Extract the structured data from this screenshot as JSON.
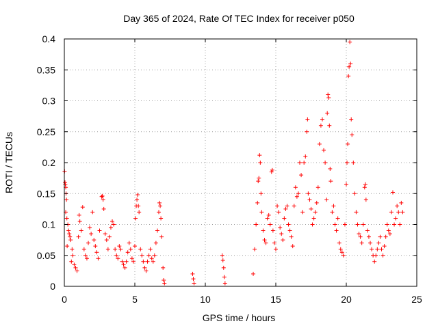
{
  "chart_data": {
    "type": "scatter",
    "title": "Day 365 of 2024, Rate Of TEC Index for receiver p050",
    "xlabel": "GPS time / hours",
    "ylabel": "ROTI / TECUs",
    "xlim": [
      0,
      25
    ],
    "ylim": [
      0,
      0.4
    ],
    "xticks": [
      0,
      5,
      10,
      15,
      20,
      25
    ],
    "yticks": [
      0,
      0.05,
      0.1,
      0.15,
      0.2,
      0.25,
      0.3,
      0.35,
      0.4
    ],
    "ytick_labels": [
      "0",
      "0.05",
      "0.1",
      "0.15",
      "0.2",
      "0.25",
      "0.3",
      "0.35",
      "0.4"
    ],
    "grid": true,
    "marker": "+",
    "color": "#ff0000",
    "series": [
      {
        "name": "ROTI",
        "points": [
          [
            0.02,
            0.186
          ],
          [
            0.05,
            0.168
          ],
          [
            0.07,
            0.165
          ],
          [
            0.1,
            0.16
          ],
          [
            0.12,
            0.15
          ],
          [
            0.15,
            0.14
          ],
          [
            0.1,
            0.12
          ],
          [
            0.18,
            0.11
          ],
          [
            0.25,
            0.1
          ],
          [
            0.3,
            0.09
          ],
          [
            0.35,
            0.085
          ],
          [
            0.4,
            0.08
          ],
          [
            0.45,
            0.075
          ],
          [
            0.55,
            0.06
          ],
          [
            0.6,
            0.05
          ],
          [
            0.2,
            0.065
          ],
          [
            0.5,
            0.04
          ],
          [
            0.7,
            0.035
          ],
          [
            0.8,
            0.03
          ],
          [
            0.9,
            0.025
          ],
          [
            1.0,
            0.08
          ],
          [
            1.05,
            0.115
          ],
          [
            1.1,
            0.105
          ],
          [
            1.2,
            0.09
          ],
          [
            1.3,
            0.128
          ],
          [
            1.4,
            0.06
          ],
          [
            1.5,
            0.05
          ],
          [
            1.6,
            0.045
          ],
          [
            1.7,
            0.07
          ],
          [
            1.8,
            0.095
          ],
          [
            1.9,
            0.085
          ],
          [
            2.0,
            0.12
          ],
          [
            2.1,
            0.075
          ],
          [
            2.2,
            0.065
          ],
          [
            2.3,
            0.055
          ],
          [
            2.4,
            0.045
          ],
          [
            2.5,
            0.09
          ],
          [
            2.65,
            0.145
          ],
          [
            2.7,
            0.146
          ],
          [
            2.75,
            0.14
          ],
          [
            2.8,
            0.125
          ],
          [
            2.9,
            0.085
          ],
          [
            3.0,
            0.075
          ],
          [
            3.1,
            0.06
          ],
          [
            3.2,
            0.08
          ],
          [
            3.3,
            0.095
          ],
          [
            3.4,
            0.105
          ],
          [
            3.5,
            0.1
          ],
          [
            3.6,
            0.06
          ],
          [
            3.7,
            0.05
          ],
          [
            3.8,
            0.045
          ],
          [
            3.9,
            0.065
          ],
          [
            4.0,
            0.06
          ],
          [
            4.1,
            0.04
          ],
          [
            4.2,
            0.035
          ],
          [
            4.3,
            0.03
          ],
          [
            4.4,
            0.04
          ],
          [
            4.5,
            0.055
          ],
          [
            4.6,
            0.07
          ],
          [
            4.7,
            0.06
          ],
          [
            4.8,
            0.045
          ],
          [
            4.9,
            0.04
          ],
          [
            5.0,
            0.065
          ],
          [
            5.05,
            0.11
          ],
          [
            5.1,
            0.13
          ],
          [
            5.15,
            0.14
          ],
          [
            5.2,
            0.148
          ],
          [
            5.25,
            0.13
          ],
          [
            5.3,
            0.12
          ],
          [
            5.4,
            0.06
          ],
          [
            5.5,
            0.05
          ],
          [
            5.6,
            0.04
          ],
          [
            5.7,
            0.03
          ],
          [
            5.8,
            0.025
          ],
          [
            5.9,
            0.04
          ],
          [
            6.0,
            0.05
          ],
          [
            6.1,
            0.06
          ],
          [
            6.2,
            0.045
          ],
          [
            6.3,
            0.04
          ],
          [
            6.4,
            0.05
          ],
          [
            6.5,
            0.07
          ],
          [
            6.6,
            0.09
          ],
          [
            6.7,
            0.12
          ],
          [
            6.75,
            0.135
          ],
          [
            6.8,
            0.13
          ],
          [
            6.85,
            0.11
          ],
          [
            6.9,
            0.08
          ],
          [
            7.0,
            0.03
          ],
          [
            7.05,
            0.01
          ],
          [
            7.1,
            0.005
          ],
          [
            9.1,
            0.02
          ],
          [
            9.15,
            0.012
          ],
          [
            9.2,
            0.005
          ],
          [
            11.2,
            0.05
          ],
          [
            11.25,
            0.042
          ],
          [
            11.3,
            0.03
          ],
          [
            11.35,
            0.015
          ],
          [
            11.4,
            0.005
          ],
          [
            13.4,
            0.02
          ],
          [
            13.5,
            0.06
          ],
          [
            13.6,
            0.1
          ],
          [
            13.7,
            0.135
          ],
          [
            13.75,
            0.17
          ],
          [
            13.8,
            0.175
          ],
          [
            13.85,
            0.212
          ],
          [
            13.9,
            0.2
          ],
          [
            13.95,
            0.15
          ],
          [
            14.0,
            0.12
          ],
          [
            14.1,
            0.09
          ],
          [
            14.2,
            0.075
          ],
          [
            14.3,
            0.07
          ],
          [
            14.4,
            0.11
          ],
          [
            14.5,
            0.115
          ],
          [
            14.6,
            0.1
          ],
          [
            14.7,
            0.185
          ],
          [
            14.75,
            0.188
          ],
          [
            14.8,
            0.09
          ],
          [
            14.9,
            0.07
          ],
          [
            15.0,
            0.06
          ],
          [
            15.1,
            0.13
          ],
          [
            15.2,
            0.12
          ],
          [
            15.3,
            0.095
          ],
          [
            15.4,
            0.085
          ],
          [
            15.5,
            0.075
          ],
          [
            15.6,
            0.11
          ],
          [
            15.7,
            0.125
          ],
          [
            15.8,
            0.13
          ],
          [
            15.9,
            0.1
          ],
          [
            16.0,
            0.09
          ],
          [
            16.1,
            0.08
          ],
          [
            16.2,
            0.065
          ],
          [
            16.3,
            0.13
          ],
          [
            16.4,
            0.16
          ],
          [
            16.5,
            0.145
          ],
          [
            16.6,
            0.15
          ],
          [
            16.7,
            0.2
          ],
          [
            16.8,
            0.18
          ],
          [
            16.9,
            0.12
          ],
          [
            17.0,
            0.2
          ],
          [
            17.1,
            0.21
          ],
          [
            17.2,
            0.25
          ],
          [
            17.25,
            0.27
          ],
          [
            17.3,
            0.15
          ],
          [
            17.4,
            0.14
          ],
          [
            17.5,
            0.125
          ],
          [
            17.6,
            0.1
          ],
          [
            17.7,
            0.11
          ],
          [
            17.8,
            0.12
          ],
          [
            17.9,
            0.135
          ],
          [
            18.0,
            0.16
          ],
          [
            18.1,
            0.23
          ],
          [
            18.2,
            0.26
          ],
          [
            18.3,
            0.27
          ],
          [
            18.4,
            0.22
          ],
          [
            18.5,
            0.2
          ],
          [
            18.6,
            0.14
          ],
          [
            18.65,
            0.28
          ],
          [
            18.7,
            0.31
          ],
          [
            18.75,
            0.305
          ],
          [
            18.8,
            0.26
          ],
          [
            18.85,
            0.19
          ],
          [
            18.9,
            0.17
          ],
          [
            19.0,
            0.12
          ],
          [
            19.1,
            0.13
          ],
          [
            19.2,
            0.1
          ],
          [
            19.3,
            0.09
          ],
          [
            19.4,
            0.11
          ],
          [
            19.5,
            0.07
          ],
          [
            19.6,
            0.06
          ],
          [
            19.7,
            0.055
          ],
          [
            19.8,
            0.05
          ],
          [
            19.9,
            0.1
          ],
          [
            20.0,
            0.165
          ],
          [
            20.05,
            0.2
          ],
          [
            20.1,
            0.23
          ],
          [
            20.15,
            0.34
          ],
          [
            20.2,
            0.355
          ],
          [
            20.25,
            0.395
          ],
          [
            20.3,
            0.36
          ],
          [
            20.35,
            0.27
          ],
          [
            20.4,
            0.245
          ],
          [
            20.5,
            0.2
          ],
          [
            20.6,
            0.15
          ],
          [
            20.7,
            0.12
          ],
          [
            20.8,
            0.1
          ],
          [
            20.9,
            0.085
          ],
          [
            21.0,
            0.08
          ],
          [
            21.1,
            0.07
          ],
          [
            21.2,
            0.1
          ],
          [
            21.3,
            0.16
          ],
          [
            21.35,
            0.165
          ],
          [
            21.4,
            0.14
          ],
          [
            21.5,
            0.09
          ],
          [
            21.6,
            0.08
          ],
          [
            21.7,
            0.07
          ],
          [
            21.8,
            0.06
          ],
          [
            21.9,
            0.05
          ],
          [
            22.0,
            0.04
          ],
          [
            22.1,
            0.05
          ],
          [
            22.2,
            0.06
          ],
          [
            22.3,
            0.07
          ],
          [
            22.4,
            0.08
          ],
          [
            22.5,
            0.06
          ],
          [
            22.6,
            0.05
          ],
          [
            22.7,
            0.065
          ],
          [
            22.8,
            0.08
          ],
          [
            22.9,
            0.1
          ],
          [
            23.0,
            0.09
          ],
          [
            23.1,
            0.085
          ],
          [
            23.2,
            0.12
          ],
          [
            23.3,
            0.152
          ],
          [
            23.4,
            0.1
          ],
          [
            23.5,
            0.11
          ],
          [
            23.6,
            0.13
          ],
          [
            23.7,
            0.12
          ],
          [
            23.8,
            0.1
          ],
          [
            23.9,
            0.135
          ],
          [
            24.0,
            0.12
          ]
        ]
      }
    ]
  }
}
